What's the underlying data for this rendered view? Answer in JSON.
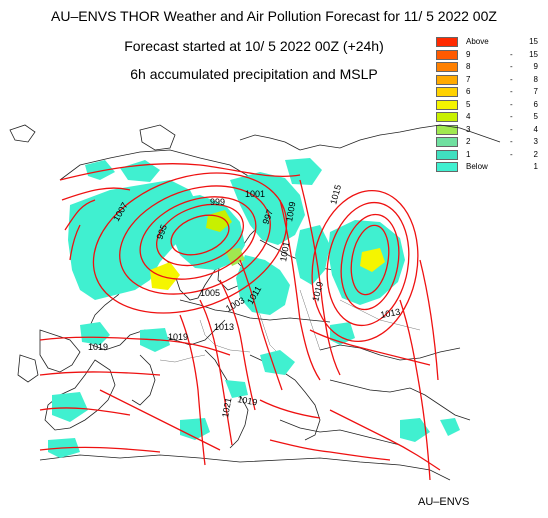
{
  "header": {
    "title": "AU–ENVS THOR Weather and Air Pollution Forecast for 11/ 5 2022  00Z",
    "started": "Forecast started at 10/ 5 2022  00Z (+24h)",
    "variable": "6h accumulated precipitation and MSLP"
  },
  "legend": {
    "items": [
      {
        "from": "Above",
        "to": "15",
        "color": "#ff2a00"
      },
      {
        "from": "9",
        "to": "15",
        "color": "#ff5a00"
      },
      {
        "from": "8",
        "to": "9",
        "color": "#ff8000"
      },
      {
        "from": "7",
        "to": "8",
        "color": "#ffaa00"
      },
      {
        "from": "6",
        "to": "7",
        "color": "#ffd200"
      },
      {
        "from": "5",
        "to": "6",
        "color": "#f5f500"
      },
      {
        "from": "4",
        "to": "5",
        "color": "#c8f000"
      },
      {
        "from": "3",
        "to": "4",
        "color": "#a0e850"
      },
      {
        "from": "2",
        "to": "3",
        "color": "#70e0a0"
      },
      {
        "from": "1",
        "to": "2",
        "color": "#40e0c0"
      },
      {
        "from": "Below",
        "to": "1",
        "color": "#40f0d0"
      }
    ]
  },
  "isobars": [
    "1007",
    "999",
    "1001",
    "1015",
    "995",
    "997",
    "1009",
    "1001",
    "1005",
    "1003",
    "1011",
    "1013",
    "1019",
    "1019",
    "1019",
    "1013",
    "1019",
    "1021"
  ],
  "colors": {
    "isobar": "#ee1111",
    "coast": "#222222",
    "precip": "#40f0d0"
  },
  "footer": "AU–ENVS"
}
